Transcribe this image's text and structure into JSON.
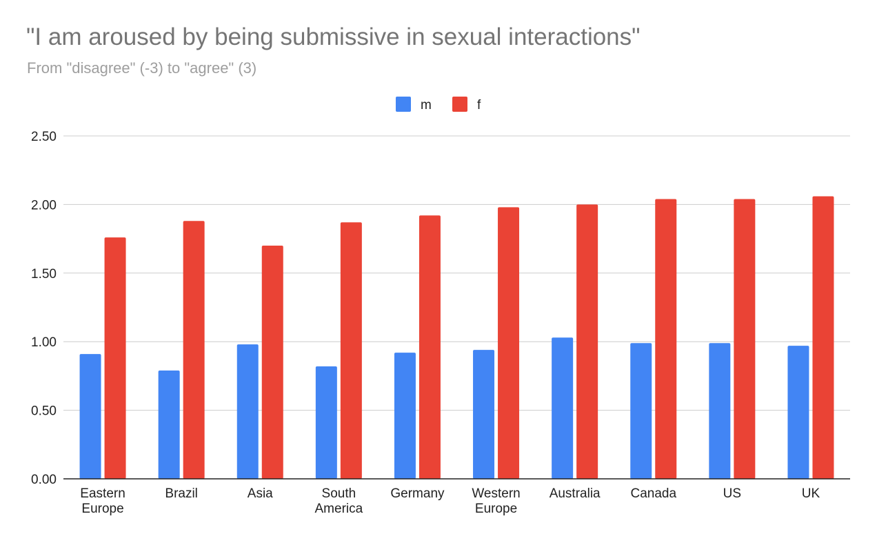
{
  "chart_data": {
    "type": "bar",
    "title": "\"I am aroused by being submissive in sexual interactions\"",
    "subtitle": "From \"disagree\" (-3) to \"agree\" (3)",
    "categories": [
      [
        "Eastern",
        "Europe"
      ],
      [
        "Brazil"
      ],
      [
        "Asia"
      ],
      [
        "South",
        "America"
      ],
      [
        "Germany"
      ],
      [
        "Western",
        "Europe"
      ],
      [
        "Australia"
      ],
      [
        "Canada"
      ],
      [
        "US"
      ],
      [
        "UK"
      ]
    ],
    "series": [
      {
        "name": "m",
        "color": "#4285f4",
        "values": [
          0.91,
          0.79,
          0.98,
          0.82,
          0.92,
          0.94,
          1.03,
          0.99,
          0.99,
          0.97
        ]
      },
      {
        "name": "f",
        "color": "#ea4335",
        "values": [
          1.76,
          1.88,
          1.7,
          1.87,
          1.92,
          1.98,
          2.0,
          2.04,
          2.04,
          2.06
        ]
      }
    ],
    "ylim": [
      0,
      2.5
    ],
    "yticks": [
      "0.00",
      "0.50",
      "1.00",
      "1.50",
      "2.00",
      "2.50"
    ],
    "ytick_values": [
      0,
      0.5,
      1.0,
      1.5,
      2.0,
      2.5
    ],
    "grid": true,
    "legend_position": "top-center"
  }
}
